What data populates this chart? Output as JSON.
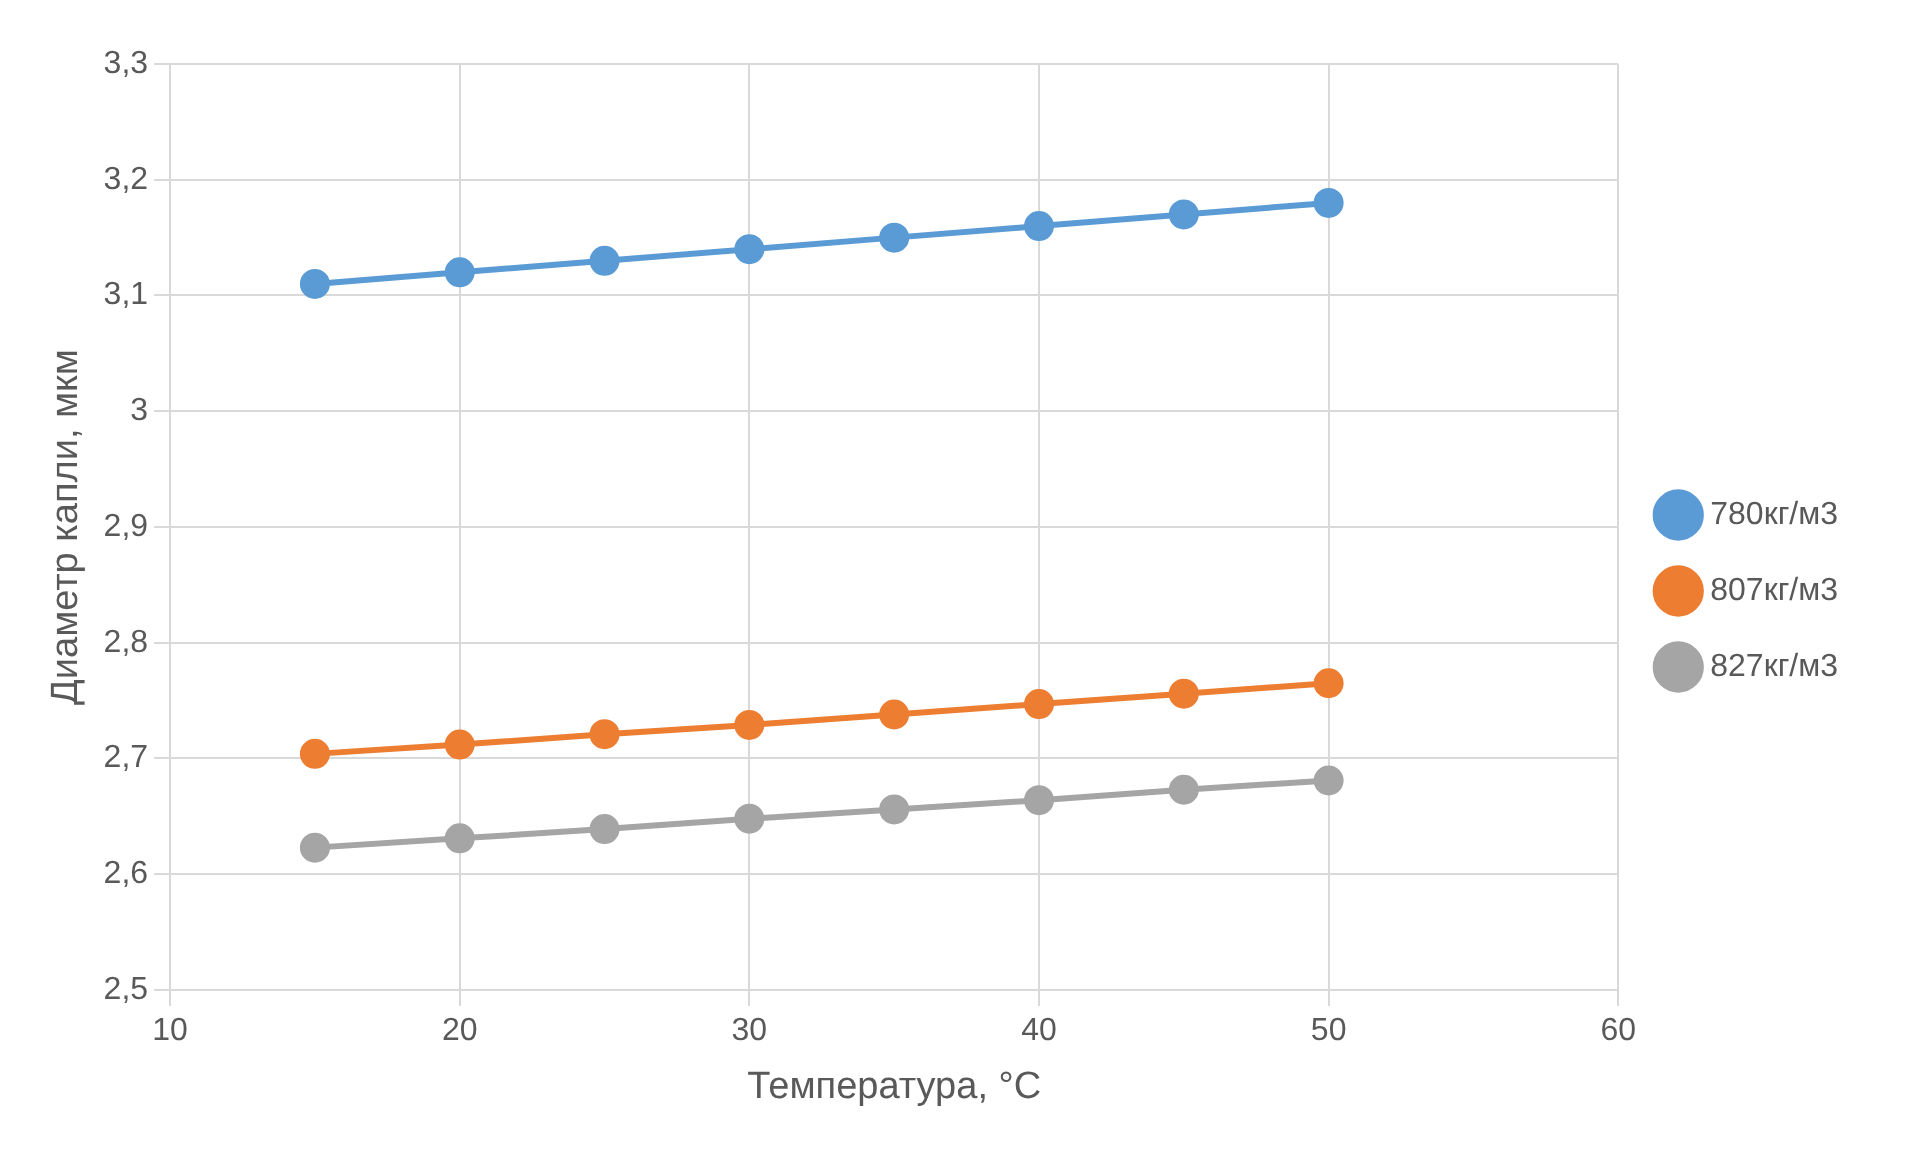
{
  "chart_data": {
    "type": "line",
    "xlabel": "Температура, °C",
    "ylabel": "Диаметр капли, мкм",
    "x": [
      15,
      20,
      25,
      30,
      35,
      40,
      45,
      50
    ],
    "series": [
      {
        "name": "780кг/м3",
        "color": "#5b9bd5",
        "values": [
          3.11,
          3.12,
          3.13,
          3.14,
          3.15,
          3.16,
          3.17,
          3.18
        ]
      },
      {
        "name": "807кг/м3",
        "color": "#ed7d31",
        "values": [
          2.704,
          2.712,
          2.721,
          2.729,
          2.738,
          2.747,
          2.756,
          2.765
        ]
      },
      {
        "name": "827кг/м3",
        "color": "#a5a5a5",
        "values": [
          2.623,
          2.631,
          2.639,
          2.648,
          2.656,
          2.664,
          2.673,
          2.681
        ]
      }
    ],
    "xlim": [
      10,
      60
    ],
    "xticks": [
      10,
      20,
      30,
      40,
      50,
      60
    ],
    "ylim": [
      2.5,
      3.3
    ],
    "yticks": [
      {
        "value": 2.5,
        "label": "2,5"
      },
      {
        "value": 2.6,
        "label": "2,6"
      },
      {
        "value": 2.7,
        "label": "2,7"
      },
      {
        "value": 2.8,
        "label": "2,8"
      },
      {
        "value": 2.9,
        "label": "2,9"
      },
      3,
      {
        "value": 3.1,
        "label": "3,1"
      },
      {
        "value": 3.2,
        "label": "3,2"
      },
      {
        "value": 3.3,
        "label": "3,3"
      }
    ],
    "grid": true,
    "legend": "right",
    "marker": "circle",
    "line_style": "solid"
  }
}
